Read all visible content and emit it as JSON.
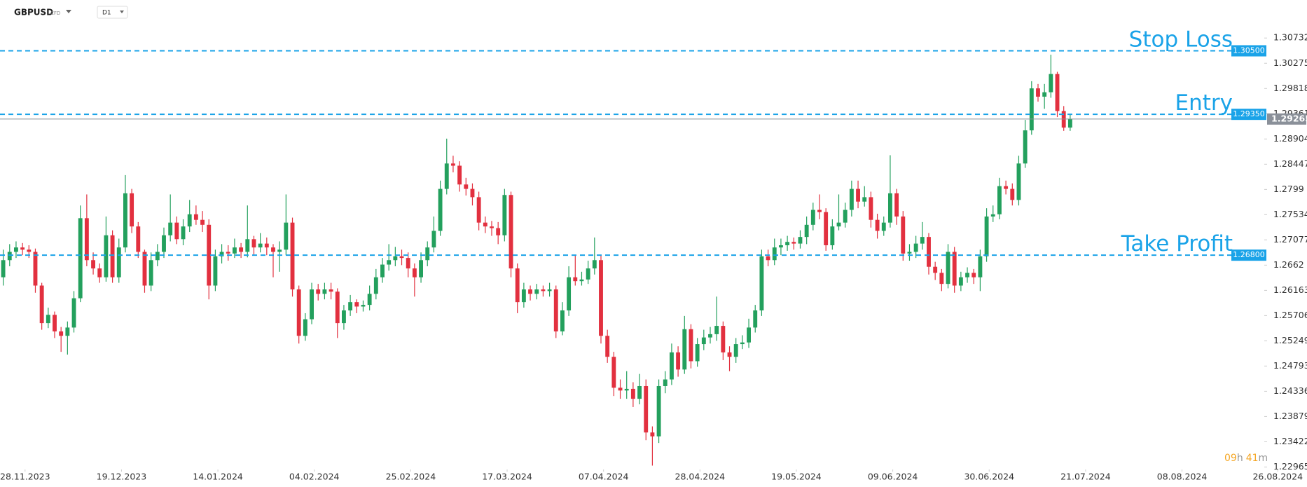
{
  "header": {
    "symbol": "GBPUSD",
    "instrument_type": "CFD",
    "interval": "D1"
  },
  "timer": [
    "09",
    "h",
    "41",
    "m"
  ],
  "chart_data": {
    "type": "candlestick",
    "up_color": "#23a05d",
    "down_color": "#e2303f",
    "level_color": "#1aa3e8",
    "last_color": "#8a9099",
    "xlim": [
      -0.5,
      196.2
    ],
    "ylim": [
      1.2292,
      1.3142
    ],
    "yticks": [
      1.30732,
      1.30275,
      1.29818,
      1.29361,
      1.28904,
      1.28447,
      1.2799,
      1.27534,
      1.27077,
      1.2662,
      1.26163,
      1.25706,
      1.25249,
      1.24793,
      1.24336,
      1.23879,
      1.23422,
      1.22965
    ],
    "xticks": [
      {
        "value": 3.4,
        "label": "28.11.2023"
      },
      {
        "value": 18.4,
        "label": "19.12.2023"
      },
      {
        "value": 33.4,
        "label": "14.01.2024"
      },
      {
        "value": 48.4,
        "label": "04.02.2024"
      },
      {
        "value": 63.4,
        "label": "25.02.2024"
      },
      {
        "value": 78.4,
        "label": "17.03.2024"
      },
      {
        "value": 93.4,
        "label": "07.04.2024"
      },
      {
        "value": 108.4,
        "label": "28.04.2024"
      },
      {
        "value": 123.4,
        "label": "19.05.2024"
      },
      {
        "value": 138.4,
        "label": "09.06.2024"
      },
      {
        "value": 153.4,
        "label": "30.06.2024"
      },
      {
        "value": 168.4,
        "label": "21.07.2024"
      },
      {
        "value": 183.4,
        "label": "08.08.2024"
      },
      {
        "value": 198.3,
        "label": "26.08.2024"
      }
    ],
    "levels": [
      {
        "name": "Stop Loss",
        "value": 1.305,
        "label": "1.30500"
      },
      {
        "name": "Entry",
        "value": 1.2935,
        "label": "1.29350"
      },
      {
        "name": "Take Profit",
        "value": 1.268,
        "label": "1.26800"
      }
    ],
    "last_price": 1.29265,
    "candles": [
      [
        1.264,
        1.269,
        1.2625,
        1.2671
      ],
      [
        1.2671,
        1.27,
        1.266,
        1.2686
      ],
      [
        1.2686,
        1.2705,
        1.2675,
        1.2694
      ],
      [
        1.2694,
        1.2702,
        1.268,
        1.269
      ],
      [
        1.269,
        1.2698,
        1.2675,
        1.2686
      ],
      [
        1.2686,
        1.2692,
        1.2612,
        1.2625
      ],
      [
        1.2625,
        1.263,
        1.2545,
        1.2557
      ],
      [
        1.2557,
        1.2585,
        1.2548,
        1.2572
      ],
      [
        1.2572,
        1.2578,
        1.253,
        1.2542
      ],
      [
        1.2542,
        1.255,
        1.2505,
        1.2534
      ],
      [
        1.2534,
        1.256,
        1.25,
        1.2549
      ],
      [
        1.2549,
        1.2615,
        1.254,
        1.2602
      ],
      [
        1.2602,
        1.277,
        1.2595,
        1.2747
      ],
      [
        1.2747,
        1.279,
        1.266,
        1.2671
      ],
      [
        1.2671,
        1.2685,
        1.2645,
        1.2656
      ],
      [
        1.2656,
        1.2665,
        1.263,
        1.264
      ],
      [
        1.264,
        1.275,
        1.2632,
        1.2716
      ],
      [
        1.2716,
        1.2725,
        1.263,
        1.264
      ],
      [
        1.264,
        1.271,
        1.263,
        1.2694
      ],
      [
        1.2694,
        1.2825,
        1.2685,
        1.2792
      ],
      [
        1.2792,
        1.28,
        1.272,
        1.2732
      ],
      [
        1.2732,
        1.274,
        1.2675,
        1.2686
      ],
      [
        1.2686,
        1.269,
        1.2612,
        1.2625
      ],
      [
        1.2625,
        1.2685,
        1.2615,
        1.2671
      ],
      [
        1.2671,
        1.27,
        1.266,
        1.2686
      ],
      [
        1.2686,
        1.273,
        1.2675,
        1.2716
      ],
      [
        1.2716,
        1.279,
        1.2705,
        1.2739
      ],
      [
        1.2739,
        1.275,
        1.27,
        1.2709
      ],
      [
        1.2709,
        1.2745,
        1.2698,
        1.2732
      ],
      [
        1.2732,
        1.278,
        1.2722,
        1.2754
      ],
      [
        1.2754,
        1.277,
        1.2735,
        1.2744
      ],
      [
        1.2744,
        1.276,
        1.2722,
        1.2735
      ],
      [
        1.2735,
        1.2745,
        1.26,
        1.2625
      ],
      [
        1.2625,
        1.269,
        1.2615,
        1.2678
      ],
      [
        1.2678,
        1.27,
        1.2665,
        1.2686
      ],
      [
        1.2686,
        1.2698,
        1.267,
        1.2683
      ],
      [
        1.2683,
        1.271,
        1.2675,
        1.2694
      ],
      [
        1.2694,
        1.2702,
        1.2675,
        1.2686
      ],
      [
        1.2686,
        1.277,
        1.2676,
        1.2709
      ],
      [
        1.2709,
        1.2715,
        1.268,
        1.2694
      ],
      [
        1.2694,
        1.272,
        1.2685,
        1.2701
      ],
      [
        1.2701,
        1.2712,
        1.268,
        1.2694
      ],
      [
        1.2694,
        1.27,
        1.264,
        1.2686
      ],
      [
        1.2686,
        1.2705,
        1.265,
        1.269
      ],
      [
        1.269,
        1.279,
        1.268,
        1.2739
      ],
      [
        1.2739,
        1.2748,
        1.2605,
        1.2618
      ],
      [
        1.2618,
        1.2625,
        1.252,
        1.2534
      ],
      [
        1.2534,
        1.2575,
        1.2525,
        1.2564
      ],
      [
        1.2564,
        1.263,
        1.2555,
        1.2618
      ],
      [
        1.2618,
        1.2628,
        1.2598,
        1.261
      ],
      [
        1.261,
        1.263,
        1.26,
        1.2618
      ],
      [
        1.2618,
        1.263,
        1.26,
        1.2614
      ],
      [
        1.2614,
        1.262,
        1.253,
        1.2557
      ],
      [
        1.2557,
        1.259,
        1.2545,
        1.258
      ],
      [
        1.258,
        1.2608,
        1.257,
        1.2595
      ],
      [
        1.2595,
        1.26,
        1.2575,
        1.2587
      ],
      [
        1.2587,
        1.2598,
        1.2578,
        1.259
      ],
      [
        1.259,
        1.2625,
        1.258,
        1.261
      ],
      [
        1.261,
        1.2655,
        1.26,
        1.264
      ],
      [
        1.264,
        1.2675,
        1.263,
        1.2663
      ],
      [
        1.2663,
        1.27,
        1.2652,
        1.2671
      ],
      [
        1.2671,
        1.2695,
        1.266,
        1.2678
      ],
      [
        1.2678,
        1.269,
        1.2662,
        1.2675
      ],
      [
        1.2675,
        1.2685,
        1.264,
        1.2656
      ],
      [
        1.2656,
        1.2665,
        1.2605,
        1.264
      ],
      [
        1.264,
        1.2685,
        1.263,
        1.2671
      ],
      [
        1.2671,
        1.2705,
        1.266,
        1.2694
      ],
      [
        1.2694,
        1.275,
        1.2685,
        1.2724
      ],
      [
        1.2724,
        1.2815,
        1.2715,
        1.28
      ],
      [
        1.28,
        1.2891,
        1.279,
        1.2846
      ],
      [
        1.2846,
        1.286,
        1.283,
        1.2842
      ],
      [
        1.2842,
        1.285,
        1.2795,
        1.2808
      ],
      [
        1.2808,
        1.282,
        1.2788,
        1.28
      ],
      [
        1.28,
        1.281,
        1.277,
        1.2785
      ],
      [
        1.2785,
        1.2795,
        1.2725,
        1.2739
      ],
      [
        1.2739,
        1.275,
        1.272,
        1.2732
      ],
      [
        1.2732,
        1.2742,
        1.2715,
        1.2729
      ],
      [
        1.2729,
        1.274,
        1.27,
        1.2716
      ],
      [
        1.2716,
        1.28,
        1.2705,
        1.2789
      ],
      [
        1.2789,
        1.2795,
        1.264,
        1.2656
      ],
      [
        1.2656,
        1.2665,
        1.2575,
        1.2595
      ],
      [
        1.2595,
        1.263,
        1.2585,
        1.2618
      ],
      [
        1.2618,
        1.2625,
        1.2598,
        1.261
      ],
      [
        1.261,
        1.2628,
        1.26,
        1.2618
      ],
      [
        1.2618,
        1.2625,
        1.2605,
        1.2615
      ],
      [
        1.2615,
        1.263,
        1.2605,
        1.2618
      ],
      [
        1.2618,
        1.2625,
        1.253,
        1.2542
      ],
      [
        1.2542,
        1.2595,
        1.2535,
        1.258
      ],
      [
        1.258,
        1.266,
        1.257,
        1.264
      ],
      [
        1.264,
        1.268,
        1.2625,
        1.2633
      ],
      [
        1.2633,
        1.265,
        1.2625,
        1.2636
      ],
      [
        1.2636,
        1.267,
        1.2628,
        1.2656
      ],
      [
        1.2656,
        1.2712,
        1.2645,
        1.2671
      ],
      [
        1.2671,
        1.268,
        1.252,
        1.2534
      ],
      [
        1.2534,
        1.2545,
        1.2485,
        1.2496
      ],
      [
        1.2496,
        1.2505,
        1.2425,
        1.244
      ],
      [
        1.244,
        1.2455,
        1.242,
        1.2435
      ],
      [
        1.2435,
        1.247,
        1.242,
        1.2438
      ],
      [
        1.2438,
        1.245,
        1.2405,
        1.242
      ],
      [
        1.242,
        1.2465,
        1.241,
        1.2443
      ],
      [
        1.2443,
        1.2455,
        1.2345,
        1.2359
      ],
      [
        1.2359,
        1.237,
        1.2299,
        1.2352
      ],
      [
        1.2352,
        1.2455,
        1.234,
        1.2443
      ],
      [
        1.2443,
        1.247,
        1.243,
        1.2455
      ],
      [
        1.2455,
        1.252,
        1.2445,
        1.2504
      ],
      [
        1.2504,
        1.2515,
        1.246,
        1.2473
      ],
      [
        1.2473,
        1.257,
        1.2465,
        1.2546
      ],
      [
        1.2546,
        1.2555,
        1.2475,
        1.2488
      ],
      [
        1.2488,
        1.253,
        1.2478,
        1.2519
      ],
      [
        1.2519,
        1.2545,
        1.2508,
        1.2531
      ],
      [
        1.2531,
        1.255,
        1.252,
        1.2537
      ],
      [
        1.2537,
        1.2605,
        1.2525,
        1.2552
      ],
      [
        1.2552,
        1.256,
        1.249,
        1.2504
      ],
      [
        1.2504,
        1.2515,
        1.247,
        1.2496
      ],
      [
        1.2496,
        1.253,
        1.2485,
        1.2519
      ],
      [
        1.2519,
        1.2535,
        1.251,
        1.2522
      ],
      [
        1.2522,
        1.2565,
        1.2512,
        1.2549
      ],
      [
        1.2549,
        1.259,
        1.254,
        1.258
      ],
      [
        1.258,
        1.269,
        1.257,
        1.2678
      ],
      [
        1.2678,
        1.269,
        1.266,
        1.2671
      ],
      [
        1.2671,
        1.271,
        1.2662,
        1.2694
      ],
      [
        1.2694,
        1.271,
        1.268,
        1.2698
      ],
      [
        1.2698,
        1.2715,
        1.2688,
        1.2704
      ],
      [
        1.2704,
        1.2712,
        1.269,
        1.2701
      ],
      [
        1.2701,
        1.2725,
        1.2692,
        1.2713
      ],
      [
        1.2713,
        1.275,
        1.27,
        1.2735
      ],
      [
        1.2735,
        1.2775,
        1.2725,
        1.2762
      ],
      [
        1.2762,
        1.279,
        1.2745,
        1.2758
      ],
      [
        1.2758,
        1.2765,
        1.2688,
        1.2698
      ],
      [
        1.2698,
        1.2745,
        1.269,
        1.2732
      ],
      [
        1.2732,
        1.279,
        1.2725,
        1.2739
      ],
      [
        1.2739,
        1.2775,
        1.273,
        1.2762
      ],
      [
        1.2762,
        1.2815,
        1.275,
        1.28
      ],
      [
        1.28,
        1.2815,
        1.2765,
        1.2777
      ],
      [
        1.2777,
        1.2805,
        1.2768,
        1.2785
      ],
      [
        1.2785,
        1.2795,
        1.273,
        1.2744
      ],
      [
        1.2744,
        1.2755,
        1.271,
        1.2724
      ],
      [
        1.2724,
        1.275,
        1.2715,
        1.2739
      ],
      [
        1.2739,
        1.2861,
        1.273,
        1.2792
      ],
      [
        1.2792,
        1.28,
        1.2735,
        1.275
      ],
      [
        1.275,
        1.276,
        1.267,
        1.2683
      ],
      [
        1.2683,
        1.27,
        1.267,
        1.2686
      ],
      [
        1.2686,
        1.2715,
        1.2675,
        1.2701
      ],
      [
        1.2701,
        1.274,
        1.269,
        1.2713
      ],
      [
        1.2713,
        1.272,
        1.2645,
        1.2659
      ],
      [
        1.2659,
        1.2668,
        1.2635,
        1.2648
      ],
      [
        1.2648,
        1.2655,
        1.2615,
        1.2628
      ],
      [
        1.2628,
        1.27,
        1.262,
        1.2686
      ],
      [
        1.2686,
        1.2695,
        1.2612,
        1.2625
      ],
      [
        1.2625,
        1.265,
        1.2615,
        1.264
      ],
      [
        1.264,
        1.2658,
        1.263,
        1.2648
      ],
      [
        1.2648,
        1.2655,
        1.2628,
        1.264
      ],
      [
        1.264,
        1.269,
        1.2615,
        1.2678
      ],
      [
        1.2678,
        1.2765,
        1.2668,
        1.275
      ],
      [
        1.275,
        1.277,
        1.274,
        1.2754
      ],
      [
        1.2754,
        1.282,
        1.2745,
        1.2805
      ],
      [
        1.2805,
        1.2815,
        1.279,
        1.28
      ],
      [
        1.28,
        1.281,
        1.277,
        1.278
      ],
      [
        1.278,
        1.286,
        1.277,
        1.2846
      ],
      [
        1.2846,
        1.2925,
        1.2838,
        1.2906
      ],
      [
        1.2906,
        1.2995,
        1.2898,
        1.2982
      ],
      [
        1.2982,
        1.299,
        1.2958,
        1.2967
      ],
      [
        1.2967,
        1.299,
        1.2945,
        1.2975
      ],
      [
        1.2975,
        1.3043,
        1.2965,
        1.3008
      ],
      [
        1.3008,
        1.3012,
        1.293,
        1.2941
      ],
      [
        1.2941,
        1.295,
        1.2905,
        1.2911
      ],
      [
        1.2911,
        1.2935,
        1.2905,
        1.2927
      ]
    ]
  }
}
